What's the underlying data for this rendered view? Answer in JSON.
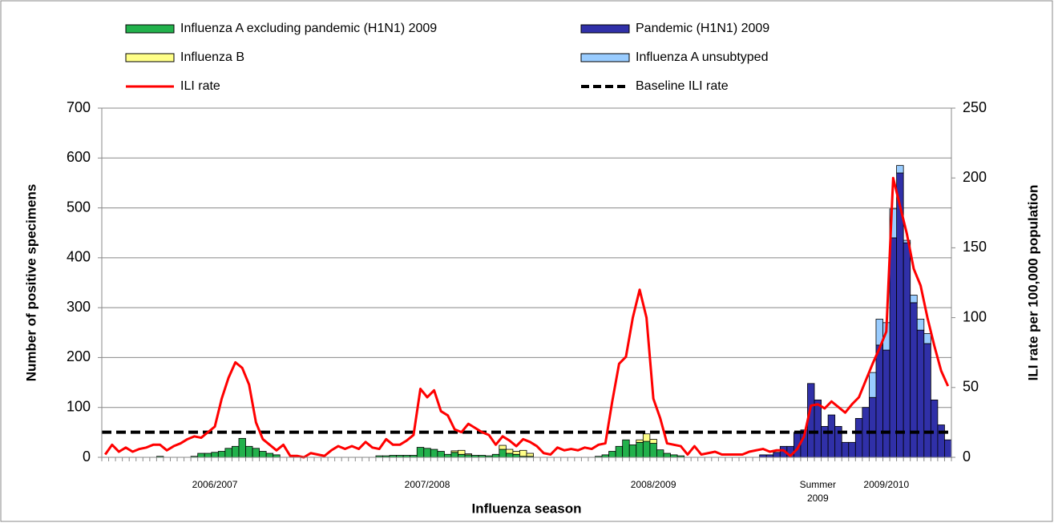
{
  "chart_data": {
    "type": "bar",
    "stacked": true,
    "x_label": "Influenza season",
    "y_label": "Number of positive specimens",
    "y2_label": "ILI rate per 100,000 population",
    "categories": [
      null,
      null,
      null,
      null,
      null,
      null,
      null,
      null,
      null,
      null,
      null,
      null,
      null,
      null,
      null,
      null,
      "2006/2007",
      null,
      null,
      null,
      null,
      null,
      null,
      null,
      null,
      null,
      null,
      null,
      null,
      null,
      null,
      null,
      null,
      null,
      null,
      null,
      null,
      null,
      null,
      null,
      null,
      null,
      null,
      null,
      null,
      null,
      null,
      "2007/2008",
      null,
      null,
      null,
      null,
      null,
      null,
      null,
      null,
      null,
      null,
      null,
      null,
      null,
      null,
      null,
      null,
      null,
      null,
      null,
      null,
      null,
      null,
      null,
      null,
      null,
      null,
      null,
      null,
      null,
      null,
      null,
      null,
      "2008/2009",
      null,
      null,
      null,
      null,
      null,
      null,
      null,
      null,
      null,
      null,
      null,
      null,
      null,
      null,
      null,
      null,
      null,
      null,
      null,
      null,
      null,
      null,
      null,
      "Summer 2009",
      null,
      null,
      null,
      null,
      null,
      null,
      null,
      null,
      null,
      "2009/2010",
      null,
      null,
      null,
      null,
      null,
      null,
      null,
      null,
      null
    ],
    "series": [
      {
        "name": "Influenza A excluding pandemic (H1N1) 2009",
        "color": "#22b14c",
        "values": [
          0,
          0,
          0,
          0,
          0,
          0,
          0,
          0,
          2,
          0,
          0,
          0,
          0,
          2,
          8,
          8,
          10,
          12,
          18,
          22,
          38,
          22,
          18,
          12,
          8,
          5,
          0,
          0,
          0,
          0,
          0,
          0,
          0,
          0,
          0,
          0,
          0,
          0,
          0,
          0,
          3,
          3,
          4,
          4,
          4,
          4,
          20,
          18,
          16,
          12,
          6,
          10,
          6,
          5,
          4,
          4,
          3,
          6,
          16,
          8,
          6,
          2,
          2,
          0,
          0,
          0,
          0,
          0,
          0,
          0,
          0,
          0,
          2,
          5,
          12,
          22,
          35,
          25,
          30,
          32,
          28,
          15,
          8,
          5,
          3,
          0,
          0,
          0,
          0,
          0,
          0,
          0,
          0,
          0,
          0,
          0,
          0,
          0,
          0,
          0,
          0,
          0,
          0,
          0,
          0,
          0,
          0,
          0,
          0,
          0,
          0,
          0,
          0,
          0,
          0,
          0,
          0,
          0,
          0,
          0,
          0,
          0,
          0,
          0
        ]
      },
      {
        "name": "Pandemic (H1N1) 2009",
        "color": "#3030a8",
        "values": [
          0,
          0,
          0,
          0,
          0,
          0,
          0,
          0,
          0,
          0,
          0,
          0,
          0,
          0,
          0,
          0,
          0,
          0,
          0,
          0,
          0,
          0,
          0,
          0,
          0,
          0,
          0,
          0,
          0,
          0,
          0,
          0,
          0,
          0,
          0,
          0,
          0,
          0,
          0,
          0,
          0,
          0,
          0,
          0,
          0,
          0,
          0,
          0,
          0,
          0,
          0,
          0,
          0,
          0,
          0,
          0,
          0,
          0,
          0,
          0,
          0,
          0,
          0,
          0,
          0,
          0,
          0,
          0,
          0,
          0,
          0,
          0,
          0,
          0,
          0,
          0,
          0,
          0,
          0,
          0,
          0,
          0,
          0,
          0,
          0,
          0,
          0,
          0,
          0,
          0,
          0,
          0,
          0,
          0,
          0,
          0,
          5,
          5,
          10,
          22,
          22,
          50,
          55,
          148,
          115,
          62,
          85,
          62,
          30,
          30,
          78,
          100,
          120,
          225,
          215,
          440,
          570,
          430,
          310,
          255,
          228,
          115,
          65,
          35
        ]
      },
      {
        "name": "Influenza B",
        "color": "#ffff88",
        "values": [
          0,
          0,
          0,
          0,
          0,
          0,
          0,
          0,
          0,
          0,
          0,
          0,
          0,
          0,
          0,
          0,
          0,
          0,
          0,
          0,
          0,
          0,
          0,
          0,
          0,
          0,
          0,
          0,
          0,
          0,
          0,
          0,
          0,
          0,
          0,
          0,
          0,
          0,
          0,
          0,
          0,
          0,
          0,
          0,
          0,
          0,
          0,
          0,
          0,
          0,
          0,
          3,
          8,
          2,
          0,
          0,
          0,
          0,
          8,
          8,
          6,
          12,
          6,
          0,
          0,
          0,
          0,
          0,
          0,
          0,
          0,
          0,
          0,
          0,
          0,
          0,
          0,
          0,
          5,
          15,
          8,
          0,
          0,
          0,
          0,
          0,
          0,
          0,
          0,
          0,
          0,
          0,
          0,
          0,
          0,
          0,
          0,
          0,
          0,
          0,
          0,
          0,
          0,
          0,
          0,
          0,
          0,
          0,
          0,
          0,
          0,
          0,
          0,
          0,
          0,
          0,
          0,
          0,
          0,
          0,
          0,
          0,
          0,
          0
        ]
      },
      {
        "name": "Influenza A unsubtyped",
        "color": "#99ccff",
        "values": [
          0,
          0,
          0,
          0,
          0,
          0,
          0,
          0,
          0,
          0,
          0,
          0,
          0,
          0,
          0,
          0,
          0,
          0,
          0,
          0,
          0,
          0,
          0,
          0,
          0,
          0,
          0,
          0,
          0,
          0,
          0,
          0,
          0,
          0,
          0,
          0,
          0,
          0,
          0,
          0,
          0,
          0,
          0,
          0,
          0,
          0,
          0,
          0,
          0,
          0,
          0,
          0,
          0,
          0,
          0,
          0,
          0,
          0,
          0,
          0,
          0,
          0,
          0,
          0,
          0,
          0,
          0,
          0,
          0,
          0,
          0,
          0,
          0,
          0,
          0,
          0,
          0,
          0,
          0,
          0,
          0,
          0,
          0,
          0,
          0,
          0,
          0,
          0,
          0,
          0,
          0,
          0,
          0,
          0,
          0,
          0,
          0,
          0,
          0,
          0,
          0,
          0,
          0,
          0,
          0,
          0,
          0,
          0,
          0,
          0,
          0,
          0,
          50,
          52,
          55,
          58,
          15,
          5,
          15,
          22,
          20,
          0,
          0,
          0
        ]
      },
      {
        "name": "ILI rate",
        "color": "#ff0000",
        "type": "line",
        "axis": "y2",
        "values": [
          2,
          9,
          4,
          7,
          4,
          6,
          7,
          9,
          9,
          5,
          8,
          10,
          13,
          15,
          14,
          18,
          22,
          42,
          57,
          68,
          64,
          52,
          25,
          13,
          9,
          5,
          9,
          1,
          1,
          0,
          3,
          2,
          1,
          5,
          8,
          6,
          8,
          6,
          11,
          7,
          6,
          13,
          9,
          9,
          12,
          16,
          49,
          43,
          48,
          33,
          30,
          20,
          18,
          24,
          21,
          18,
          16,
          9,
          15,
          12,
          8,
          13,
          11,
          8,
          3,
          2,
          7,
          5,
          6,
          5,
          7,
          6,
          9,
          10,
          40,
          67,
          72,
          100,
          120,
          100,
          42,
          28,
          10,
          9,
          8,
          2,
          8,
          2,
          3,
          4,
          2,
          2,
          2,
          2,
          4,
          5,
          6,
          4,
          5,
          5,
          1,
          6,
          15,
          37,
          38,
          35,
          40,
          36,
          32,
          38,
          43,
          55,
          67,
          78,
          90,
          200,
          180,
          160,
          135,
          123,
          100,
          80,
          62,
          51
        ]
      }
    ],
    "baseline": {
      "name": "Baseline ILI rate",
      "value": 18,
      "axis": "y2",
      "color": "#000000",
      "style": "dashed"
    },
    "ylim": [
      0,
      700
    ],
    "yticks": [
      0,
      100,
      200,
      300,
      400,
      500,
      600,
      700
    ],
    "y2lim": [
      0,
      250
    ],
    "y2ticks": [
      0,
      50,
      100,
      150,
      200,
      250
    ],
    "grid": true
  }
}
